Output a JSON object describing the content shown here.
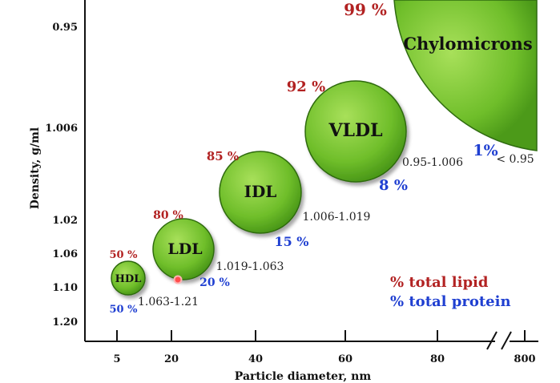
{
  "chart_data": {
    "type": "scatter",
    "xlabel": "Particle diameter, nm",
    "ylabel": "Density, g/ml",
    "x_ticks": [
      "5",
      "20",
      "40",
      "60",
      "80",
      "800"
    ],
    "y_ticks": [
      "0.95",
      "1.006",
      "1.02",
      "1.06",
      "1.10",
      "1.20"
    ],
    "legend": {
      "lipid": "% total lipid",
      "protein": "% total protein",
      "placement": "bottom-right"
    },
    "colors": {
      "bubble": "#6fbe2a",
      "bubble_dark": "#3f8a14",
      "lipid": "#b22222",
      "protein": "#1f3fd1"
    },
    "points": [
      {
        "name": "HDL",
        "density_range": "1.063-1.21",
        "lipid_label": "50 %",
        "protein_label": "50 %",
        "lipid_pct": 50,
        "protein_pct": 50
      },
      {
        "name": "LDL",
        "density_range": "1.019-1.063",
        "lipid_label": "80 %",
        "protein_label": "20 %",
        "lipid_pct": 80,
        "protein_pct": 20
      },
      {
        "name": "IDL",
        "density_range": "1.006-1.019",
        "lipid_label": "85 %",
        "protein_label": "15 %",
        "lipid_pct": 85,
        "protein_pct": 15
      },
      {
        "name": "VLDL",
        "density_range": "0.95-1.006",
        "lipid_label": "92 %",
        "protein_label": "8 %",
        "lipid_pct": 92,
        "protein_pct": 8
      },
      {
        "name": "Chylomicrons",
        "density_range": "< 0.95",
        "lipid_label": "99 %",
        "protein_label": "1%",
        "lipid_pct": 99,
        "protein_pct": 1
      }
    ]
  }
}
